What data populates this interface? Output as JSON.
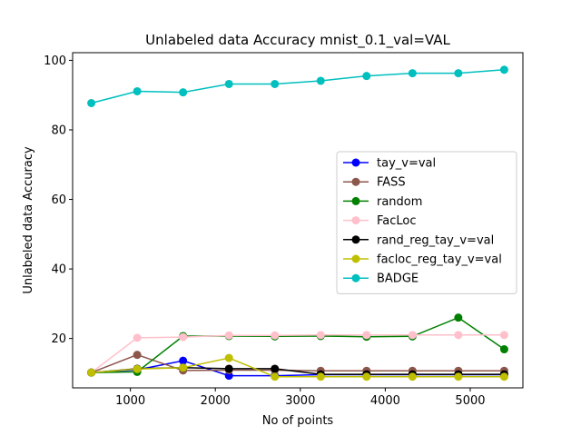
{
  "chart_data": {
    "type": "line",
    "title": "Unlabeled data Accuracy mnist_0.1_val=VAL",
    "xlabel": "No of points",
    "ylabel": "Unlabeled data Accuracy",
    "xlim": [
      320,
      5620
    ],
    "ylim": [
      5.8,
      102.2
    ],
    "xticks": [
      1000,
      2000,
      3000,
      4000,
      5000
    ],
    "yticks": [
      20,
      40,
      60,
      80,
      100
    ],
    "grid": false,
    "legend_position": "center-right",
    "x": [
      540,
      1080,
      1620,
      2160,
      2700,
      3240,
      3780,
      4320,
      4860,
      5400
    ],
    "series": [
      {
        "name": "tay_v=val",
        "color": "#0000ff",
        "values": [
          10.2,
          11.0,
          13.6,
          9.3,
          9.3,
          9.6,
          9.6,
          9.6,
          9.6,
          9.6
        ]
      },
      {
        "name": "FASS",
        "color": "#8c564b",
        "values": [
          10.2,
          15.3,
          10.8,
          10.9,
          10.9,
          10.7,
          10.7,
          10.7,
          10.7,
          10.7
        ]
      },
      {
        "name": "random",
        "color": "#008000",
        "values": [
          10.2,
          10.4,
          20.7,
          20.7,
          20.6,
          20.7,
          20.5,
          20.6,
          26.0,
          16.9
        ]
      },
      {
        "name": "FacLoc",
        "color": "#ffc0cb",
        "values": [
          10.2,
          20.2,
          20.4,
          20.9,
          20.9,
          21.0,
          21.0,
          21.0,
          21.0,
          21.0
        ]
      },
      {
        "name": "rand_reg_tay_v=val",
        "color": "#000000",
        "values": [
          10.2,
          11.3,
          11.6,
          11.3,
          11.3,
          9.7,
          9.7,
          9.7,
          9.7,
          9.7
        ]
      },
      {
        "name": "facloc_reg_tay_v=val",
        "color": "#bfbf00",
        "values": [
          10.2,
          11.2,
          11.6,
          14.4,
          9.0,
          9.0,
          9.0,
          9.0,
          9.0,
          9.0
        ]
      },
      {
        "name": "BADGE",
        "color": "#00bfbf",
        "values": [
          87.7,
          91.1,
          90.8,
          93.2,
          93.2,
          94.1,
          95.5,
          96.3,
          96.3,
          97.3
        ]
      }
    ]
  }
}
